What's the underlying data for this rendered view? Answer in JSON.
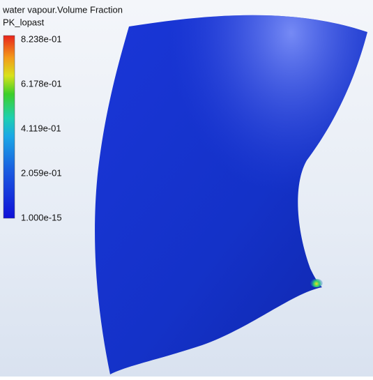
{
  "legend": {
    "title": "water vapour.Volume Fraction",
    "location": "PK_lopast",
    "ticks": [
      "8.238e-01",
      "6.178e-01",
      "4.119e-01",
      "2.059e-01",
      "1.000e-15"
    ]
  }
}
